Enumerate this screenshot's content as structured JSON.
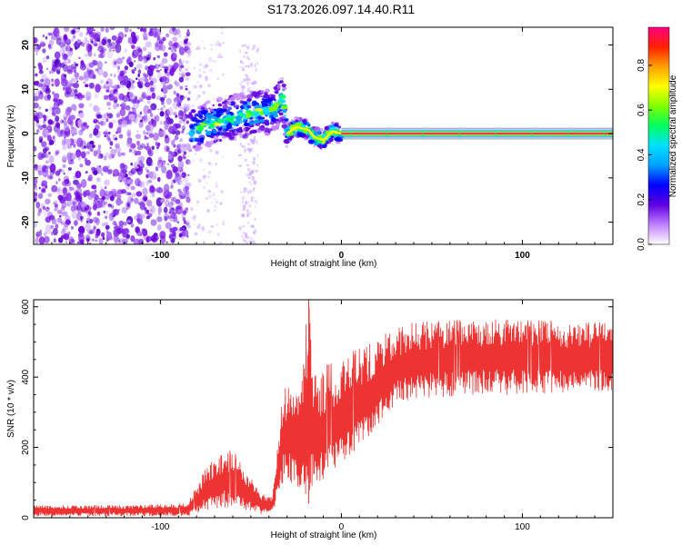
{
  "figure_title": "S173.2026.097.14.40.R11",
  "chart_data": [
    {
      "type": "heatmap",
      "title": "S173.2026.097.14.40.R11",
      "xlabel": "Height of straight line (km)",
      "ylabel": "Frequency (Hz)",
      "xlim": [
        -170,
        150
      ],
      "ylim": [
        -25,
        24
      ],
      "x_ticks": [
        -100,
        0,
        100
      ],
      "y_ticks": [
        -20,
        -10,
        0,
        10,
        20
      ],
      "colorbar": {
        "label": "Normalized spectral amplitude",
        "range": [
          0.0,
          0.97
        ],
        "ticks": [
          0.0,
          0.2,
          0.4,
          0.6,
          0.8
        ],
        "colormap": [
          "#ffffff",
          "#c080ff",
          "#6000e0",
          "#0000ff",
          "#00a0ff",
          "#00e0ff",
          "#00ff60",
          "#80ff00",
          "#ffff00",
          "#ffa000",
          "#ff2000",
          "#ff0080"
        ]
      },
      "regions": [
        {
          "name": "noise",
          "x_range": [
            -170,
            -84
          ],
          "freq_range": [
            -25,
            24
          ],
          "amplitude": 0.05
        },
        {
          "name": "transition",
          "x_range": [
            -84,
            -30
          ],
          "freq_range": [
            -6,
            8
          ],
          "amplitude": 0.3
        },
        {
          "name": "stray streak",
          "x_range": [
            -56,
            -46
          ],
          "freq_range": [
            -25,
            20
          ],
          "amplitude": 0.03
        },
        {
          "name": "fading signal",
          "x_range": [
            -30,
            0
          ],
          "freq_range": [
            -2,
            2
          ],
          "amplitude": 0.6
        },
        {
          "name": "stable signal",
          "x_range": [
            0,
            150
          ],
          "freq_range": [
            -0.5,
            0.5
          ],
          "amplitude": 0.95
        }
      ],
      "ridge_line": [
        {
          "x": -84,
          "f": 0
        },
        {
          "x": -75,
          "f": 2
        },
        {
          "x": -65,
          "f": 3
        },
        {
          "x": -55,
          "f": 4
        },
        {
          "x": -45,
          "f": 5
        },
        {
          "x": -38,
          "f": 5
        },
        {
          "x": -32,
          "f": 8
        },
        {
          "x": -30,
          "f": 0
        },
        {
          "x": -25,
          "f": 1.5
        },
        {
          "x": -18,
          "f": 0.8
        },
        {
          "x": -15,
          "f": -0.8
        },
        {
          "x": -10,
          "f": -1.5
        },
        {
          "x": -5,
          "f": 0.5
        },
        {
          "x": 0,
          "f": 0
        },
        {
          "x": 150,
          "f": 0
        }
      ]
    },
    {
      "type": "line",
      "title": "",
      "xlabel": "Height of straight line (km)",
      "ylabel": "SNR (10 * v/v)",
      "xlim": [
        -170,
        150
      ],
      "ylim": [
        0,
        620
      ],
      "x_ticks": [
        -100,
        0,
        100
      ],
      "y_ticks": [
        0,
        200,
        400,
        600
      ],
      "series": [
        {
          "name": "SNR",
          "color": "#ee3333",
          "envelope": [
            {
              "x": -170,
              "low": 5,
              "mid": 20,
              "high": 35
            },
            {
              "x": -120,
              "low": 5,
              "mid": 20,
              "high": 35
            },
            {
              "x": -85,
              "low": 5,
              "mid": 22,
              "high": 40
            },
            {
              "x": -75,
              "low": 20,
              "mid": 70,
              "high": 140
            },
            {
              "x": -65,
              "low": 30,
              "mid": 100,
              "high": 200
            },
            {
              "x": -58,
              "low": 30,
              "mid": 90,
              "high": 180
            },
            {
              "x": -52,
              "low": 20,
              "mid": 70,
              "high": 130
            },
            {
              "x": -45,
              "low": 10,
              "mid": 40,
              "high": 70
            },
            {
              "x": -38,
              "low": 10,
              "mid": 35,
              "high": 60
            },
            {
              "x": -32,
              "low": 100,
              "mid": 230,
              "high": 380
            },
            {
              "x": -25,
              "low": 90,
              "mid": 210,
              "high": 350
            },
            {
              "x": -18,
              "low": 60,
              "mid": 280,
              "high": 620
            },
            {
              "x": -15,
              "low": 100,
              "mid": 220,
              "high": 400
            },
            {
              "x": -10,
              "low": 110,
              "mid": 230,
              "high": 430
            },
            {
              "x": -5,
              "low": 140,
              "mid": 250,
              "high": 440
            },
            {
              "x": 0,
              "low": 150,
              "mid": 280,
              "high": 460
            },
            {
              "x": 10,
              "low": 200,
              "mid": 310,
              "high": 480
            },
            {
              "x": 20,
              "low": 260,
              "mid": 360,
              "high": 510
            },
            {
              "x": 30,
              "low": 320,
              "mid": 420,
              "high": 540
            },
            {
              "x": 40,
              "low": 340,
              "mid": 440,
              "high": 555
            },
            {
              "x": 60,
              "low": 345,
              "mid": 450,
              "high": 560
            },
            {
              "x": 80,
              "low": 350,
              "mid": 455,
              "high": 565
            },
            {
              "x": 100,
              "low": 350,
              "mid": 455,
              "high": 560
            },
            {
              "x": 120,
              "low": 355,
              "mid": 450,
              "high": 560
            },
            {
              "x": 140,
              "low": 360,
              "mid": 450,
              "high": 555
            },
            {
              "x": 150,
              "low": 360,
              "mid": 450,
              "high": 555
            }
          ]
        }
      ]
    }
  ]
}
